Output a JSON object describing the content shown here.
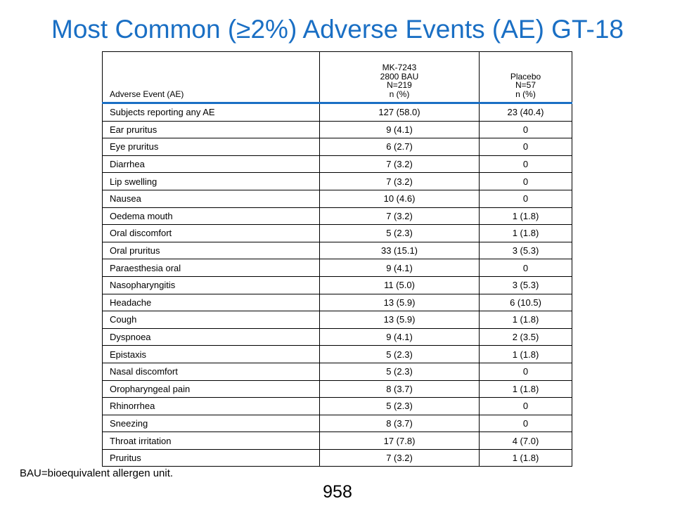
{
  "title": "Most Common (≥2%) Adverse Events (AE) GT-18",
  "table": {
    "header": {
      "ae": "Adverse Event (AE)",
      "mk": [
        "MK-7243",
        "2800 BAU",
        "N=219",
        "n (%)"
      ],
      "placebo": [
        "Placebo",
        "N=57",
        "n (%)"
      ]
    },
    "rows": [
      [
        "Subjects reporting any AE",
        "127 (58.0)",
        "23 (40.4)"
      ],
      [
        "Ear pruritus",
        "9 (4.1)",
        "0"
      ],
      [
        "Eye pruritus",
        "6 (2.7)",
        "0"
      ],
      [
        "Diarrhea",
        "7 (3.2)",
        "0"
      ],
      [
        "Lip swelling",
        "7 (3.2)",
        "0"
      ],
      [
        "Nausea",
        "10 (4.6)",
        "0"
      ],
      [
        "Oedema mouth",
        "7 (3.2)",
        "1 (1.8)"
      ],
      [
        "Oral discomfort",
        "5 (2.3)",
        "1 (1.8)"
      ],
      [
        "Oral pruritus",
        "33 (15.1)",
        "3 (5.3)"
      ],
      [
        "Paraesthesia oral",
        "9 (4.1)",
        "0"
      ],
      [
        "Nasopharyngitis",
        "11 (5.0)",
        "3 (5.3)"
      ],
      [
        "Headache",
        "13 (5.9)",
        "6 (10.5)"
      ],
      [
        "Cough",
        "13 (5.9)",
        "1 (1.8)"
      ],
      [
        "Dyspnoea",
        "9 (4.1)",
        "2 (3.5)"
      ],
      [
        "Epistaxis",
        "5 (2.3)",
        "1 (1.8)"
      ],
      [
        "Nasal discomfort",
        "5 (2.3)",
        "0"
      ],
      [
        "Oropharyngeal pain",
        "8 (3.7)",
        "1 (1.8)"
      ],
      [
        "Rhinorrhea",
        "5 (2.3)",
        "0"
      ],
      [
        "Sneezing",
        "8 (3.7)",
        "0"
      ],
      [
        "Throat irritation",
        "17 (7.8)",
        "4 (7.0)"
      ],
      [
        "Pruritus",
        "7 (3.2)",
        "1 (1.8)"
      ]
    ]
  },
  "footnote": "BAU=bioequivalent allergen unit.",
  "page_number": "958",
  "colors": {
    "title": "#1a6fc4",
    "header_rule": "#1a6fc4"
  }
}
